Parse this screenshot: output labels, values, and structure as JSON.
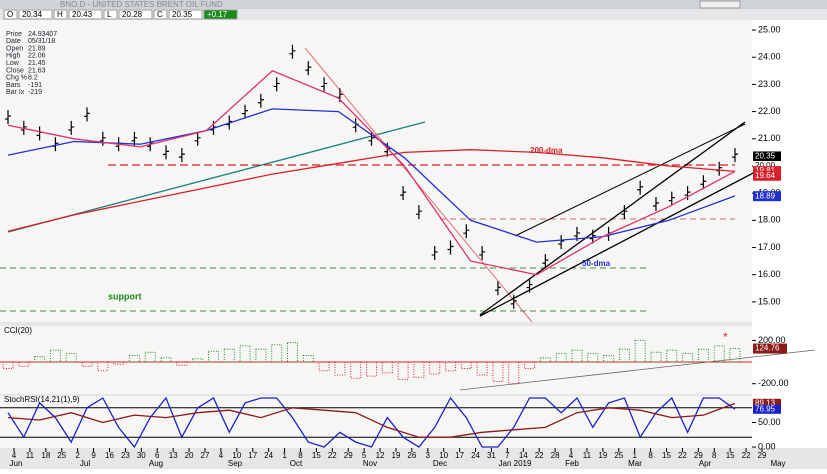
{
  "header": {
    "title": "BNO.D - UNITED STATES BRENT OIL FUND",
    "toolbar": [
      "O",
      "20.34",
      "H",
      "20.43",
      "L",
      "20.28",
      "C",
      "20.35",
      "+0.17"
    ]
  },
  "chart_data": [
    {
      "type": "stock",
      "info": [
        [
          "Price",
          "24.93407"
        ],
        [
          "Date",
          "05/31/18"
        ],
        [
          "Open",
          "21.89"
        ],
        [
          "High",
          "22.06"
        ],
        [
          "Low",
          "21.45"
        ],
        [
          "Close",
          "21.63"
        ],
        [
          "Chg %",
          "8.2"
        ],
        [
          "Bars",
          "-191"
        ],
        [
          "Bar Ix",
          "-219"
        ]
      ],
      "ylim": [
        14.26,
        25.37
      ],
      "yticks": [
        {
          "value": 15,
          "label": "15.00"
        },
        {
          "value": 16,
          "label": "16.00"
        },
        {
          "value": 17,
          "label": "17.00"
        },
        {
          "value": 18,
          "label": "18.00"
        },
        {
          "value": 19,
          "label": "19.00"
        },
        {
          "value": 20,
          "label": "20.00"
        },
        {
          "value": 21,
          "label": "21.00"
        },
        {
          "value": 22,
          "label": "22.00"
        },
        {
          "value": 23,
          "label": "23.00"
        },
        {
          "value": 24,
          "label": "24.00"
        },
        {
          "value": 25,
          "label": "25.00"
        }
      ],
      "series": [
        {
          "color": "#000000",
          "values": [
            21.8,
            21.4,
            21.2,
            20.8,
            21.4,
            21.9,
            21.0,
            20.8,
            21.0,
            20.8,
            20.5,
            20.4,
            21.0,
            21.4,
            21.6,
            22.0,
            22.4,
            23.0,
            24.2,
            23.6,
            23.0,
            22.6,
            21.5,
            21.0,
            20.6,
            19.0,
            18.3,
            16.8,
            17.0,
            17.6,
            16.8,
            15.5,
            15.0,
            15.6,
            16.5,
            17.2,
            17.5,
            17.4,
            17.5,
            18.3,
            19.2,
            18.6,
            18.8,
            19.0,
            19.4,
            19.9,
            20.4
          ]
        },
        {
          "name": "200-dma",
          "color": "#d8202a",
          "values": [
            17.6,
            18.2,
            18.7,
            19.2,
            19.7,
            20.1,
            20.5,
            20.6,
            20.5,
            20.3,
            20.0,
            19.8
          ]
        },
        {
          "name": "50-dma",
          "color": "#2030d0",
          "values": [
            20.4,
            20.9,
            20.8,
            21.3,
            22.1,
            22.0,
            20.3,
            18.0,
            17.2,
            17.4,
            18.0,
            18.9
          ]
        },
        {
          "color": "#e0306a",
          "values": [
            21.5,
            21.0,
            20.7,
            21.3,
            23.5,
            22.5,
            20.0,
            16.5,
            16.0,
            17.4,
            18.5,
            19.8
          ]
        }
      ],
      "annotations": [
        "support"
      ],
      "price_labels": [
        {
          "value": 20.35,
          "label": "20.35",
          "color": "#000000"
        },
        {
          "value": 20.0,
          "label": "20.00",
          "color": "#ffffff"
        },
        {
          "value": 19.81,
          "label": "19.81",
          "color": "#d8202a"
        },
        {
          "value": 19.64,
          "label": "19.64",
          "color": "#d8202a"
        },
        {
          "value": 18.89,
          "label": "18.89",
          "color": "#2030d0"
        }
      ]
    },
    {
      "type": "cci",
      "title": "CCI(20)",
      "ylim": [
        -295,
        333
      ],
      "yticks": [
        {
          "value": 200,
          "label": "200.00"
        },
        {
          "value": -200,
          "label": "-200.00"
        }
      ],
      "values": [
        -60,
        -40,
        50,
        110,
        80,
        -40,
        -80,
        -20,
        60,
        90,
        40,
        -30,
        30,
        100,
        120,
        150,
        120,
        160,
        180,
        60,
        -80,
        -120,
        -150,
        -130,
        -100,
        -160,
        -140,
        -110,
        -80,
        -60,
        -120,
        -180,
        -200,
        -60,
        40,
        80,
        110,
        80,
        60,
        120,
        200,
        90,
        110,
        80,
        120,
        150,
        125
      ],
      "last": {
        "value": 124.76,
        "label": "124.76"
      },
      "pos_color": "#1a8a1a",
      "neg_color": "#d8202a"
    },
    {
      "type": "line",
      "title": "StochRSI(14,21(1),9)",
      "ylim": [
        -2,
        104
      ],
      "yticks": [
        {
          "value": 50,
          "label": "50.00"
        },
        {
          "value": 0,
          "label": "0.00"
        }
      ],
      "series": [
        {
          "color": "#1a20c8",
          "values": [
            70,
            20,
            90,
            60,
            10,
            80,
            100,
            40,
            0,
            60,
            100,
            20,
            80,
            100,
            30,
            90,
            100,
            100,
            60,
            10,
            0,
            30,
            10,
            0,
            60,
            20,
            0,
            40,
            100,
            60,
            0,
            0,
            40,
            100,
            100,
            70,
            100,
            40,
            90,
            100,
            20,
            70,
            100,
            30,
            100,
            100,
            77
          ]
        },
        {
          "color": "#8b1a1a",
          "values": [
            60,
            55,
            70,
            50,
            65,
            60,
            70,
            75,
            60,
            80,
            75,
            70,
            40,
            20,
            20,
            30,
            35,
            40,
            70,
            80,
            75,
            60,
            65,
            89
          ]
        }
      ],
      "last_labels": [
        {
          "value": 89.13,
          "label": "89.13",
          "color": "#8b1a1a"
        },
        {
          "value": 76.95,
          "label": "76.95",
          "color": "#1a20c8"
        }
      ],
      "day_labels": [
        4,
        11,
        18,
        25,
        2,
        9,
        16,
        23,
        30,
        6,
        13,
        20,
        27,
        4,
        10,
        17,
        24,
        1,
        8,
        15,
        22,
        29,
        5,
        12,
        19,
        26,
        3,
        10,
        17,
        24,
        31,
        7,
        14,
        22,
        28,
        4,
        11,
        19,
        25,
        1,
        8,
        15,
        22,
        29,
        8,
        15,
        22,
        29
      ],
      "month_labels": [
        "Jun",
        "Jul",
        "Aug",
        "Sep",
        "Oct",
        "Nov",
        "Dec",
        "Jan 2019",
        "Feb",
        "Mar",
        "Apr",
        "May"
      ]
    }
  ]
}
